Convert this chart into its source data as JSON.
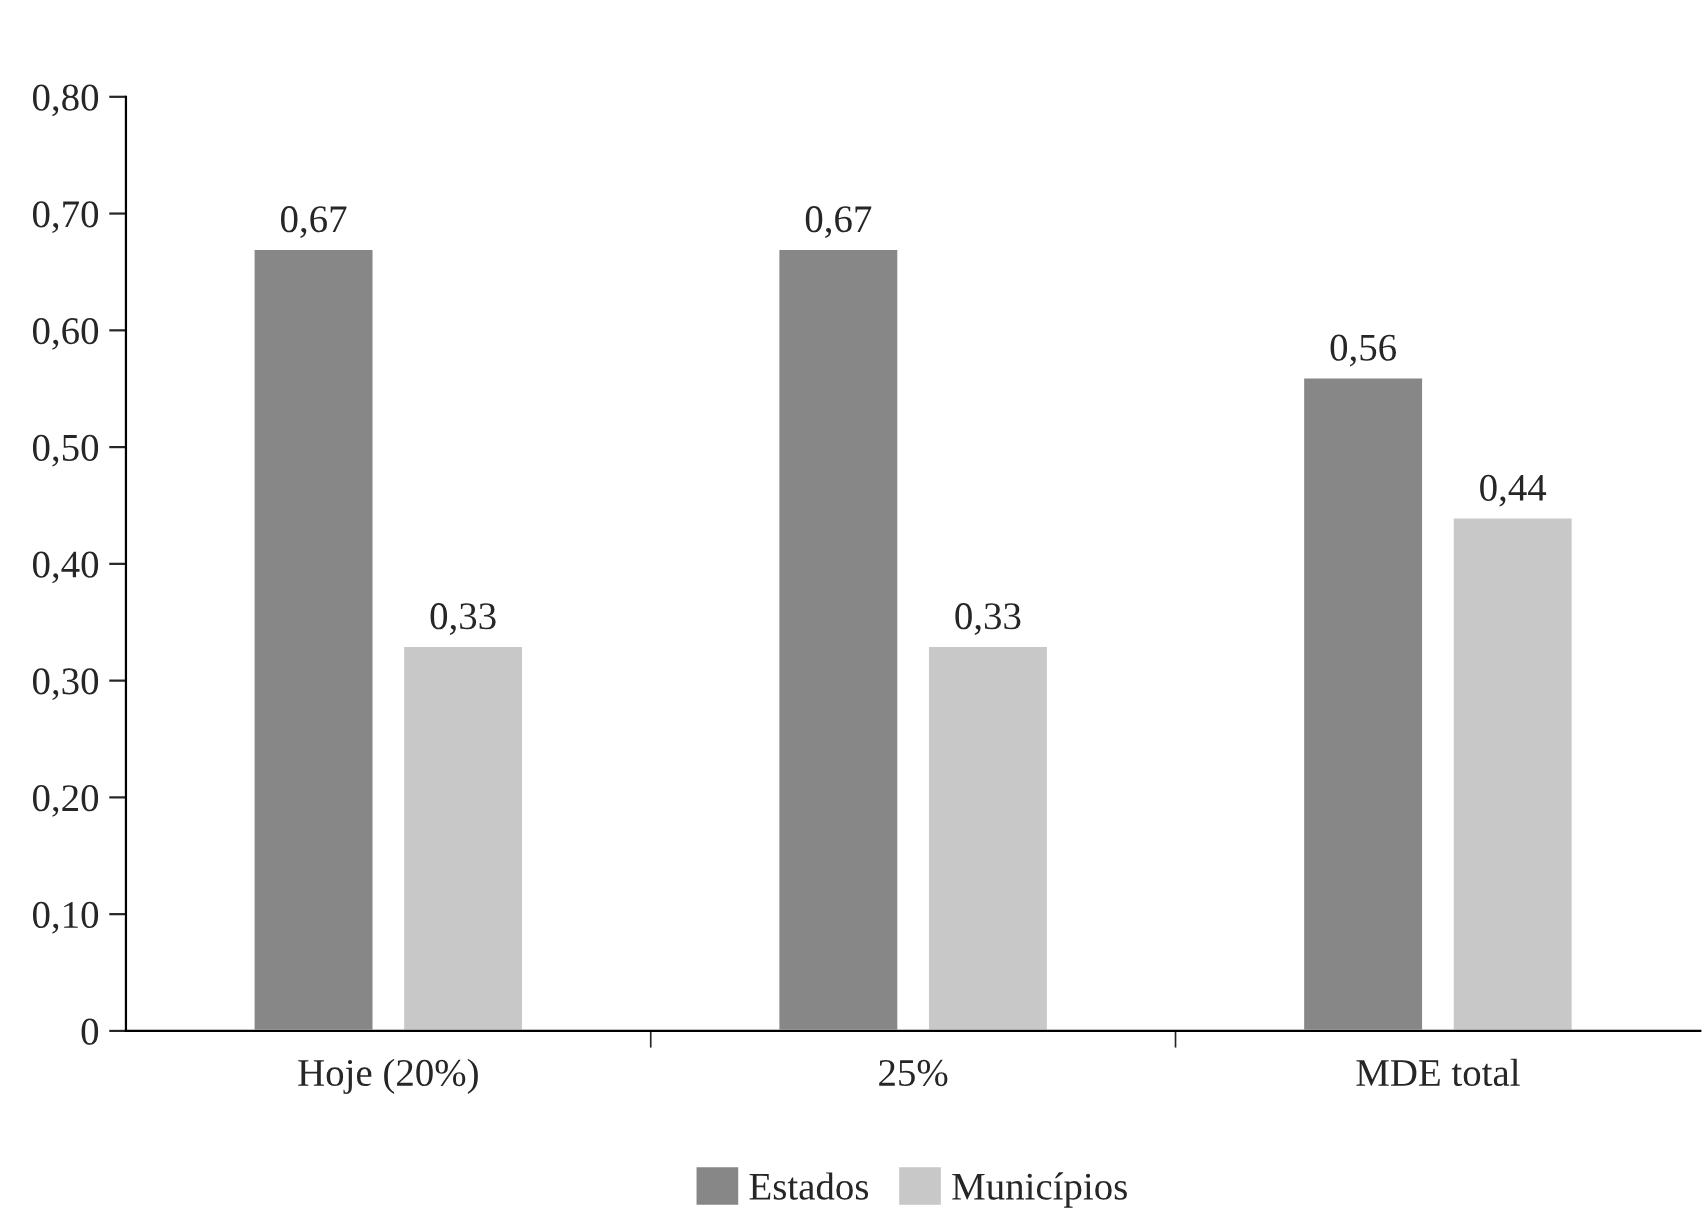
{
  "chart_data": {
    "type": "bar",
    "categories": [
      "Hoje (20%)",
      "25%",
      "MDE total"
    ],
    "series": [
      {
        "name": "Estados",
        "color": "#878787",
        "values": [
          0.67,
          0.67,
          0.56
        ],
        "value_labels": [
          "0,67",
          "0,67",
          "0,56"
        ]
      },
      {
        "name": "Municípios",
        "color": "#c8c8c8",
        "values": [
          0.33,
          0.33,
          0.44
        ],
        "value_labels": [
          "0,33",
          "0,33",
          "0,44"
        ]
      }
    ],
    "ylim": [
      0,
      0.8
    ],
    "yticks": [
      0,
      {
        "value": 0.1,
        "label": "0,10"
      },
      {
        "value": 0.2,
        "label": "0,20"
      },
      {
        "value": 0.3,
        "label": "0,30"
      },
      {
        "value": 0.4,
        "label": "0,40"
      },
      {
        "value": 0.5,
        "label": "0,50"
      },
      {
        "value": 0.6,
        "label": "0,60"
      },
      {
        "value": 0.7,
        "label": "0,70"
      },
      {
        "value": 0.8,
        "label": "0,80"
      }
    ],
    "grid": false,
    "legend": "bottom"
  }
}
